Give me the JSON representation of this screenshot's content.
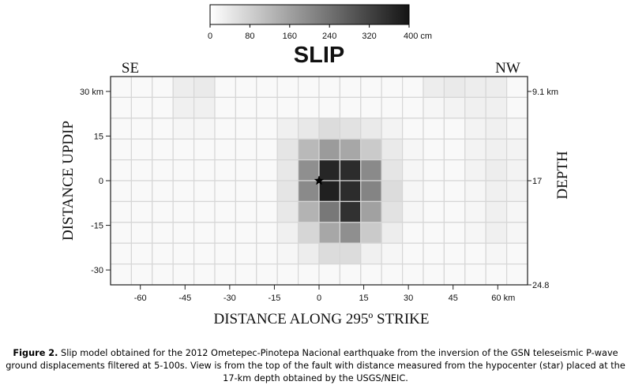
{
  "chart_data": {
    "type": "heatmap",
    "title": "SLIP",
    "colorbar": {
      "min": 0,
      "max": 400,
      "unit": "cm",
      "tick_labels": [
        "0",
        "80",
        "160",
        "240",
        "320",
        "400 cm"
      ],
      "tick_values": [
        0,
        80,
        160,
        240,
        320,
        400
      ]
    },
    "xlabel": "DISTANCE ALONG 295º STRIKE",
    "ylabel": "DISTANCE UPDIP",
    "right_label": "DEPTH",
    "corner_left": "SE",
    "corner_right": "NW",
    "x_ticks": [
      {
        "value": -60,
        "label": "-60"
      },
      {
        "value": -45,
        "label": "-45"
      },
      {
        "value": -30,
        "label": "-30"
      },
      {
        "value": -15,
        "label": "-15"
      },
      {
        "value": 0,
        "label": "0"
      },
      {
        "value": 15,
        "label": "15"
      },
      {
        "value": 30,
        "label": "30"
      },
      {
        "value": 45,
        "label": "45"
      },
      {
        "value": 60,
        "label": "60 km"
      }
    ],
    "y_ticks": [
      {
        "value": 30,
        "label": "30 km"
      },
      {
        "value": 15,
        "label": "15"
      },
      {
        "value": 0,
        "label": "0"
      },
      {
        "value": -15,
        "label": "-15"
      },
      {
        "value": -30,
        "label": "-30"
      }
    ],
    "depth_ticks": [
      {
        "value": 30,
        "label": "9.1 km"
      },
      {
        "value": 0,
        "label": "17"
      },
      {
        "value": -35,
        "label": "24.8"
      }
    ],
    "xlim": [
      -70,
      70
    ],
    "ylim": [
      -35,
      35
    ],
    "subfault_size_km": [
      7,
      7
    ],
    "grid_x_start": -70,
    "grid_y_top": 35,
    "hypocenter": {
      "x": 0,
      "y": 0
    },
    "slip_cm": [
      [
        10,
        10,
        10,
        30,
        35,
        10,
        10,
        10,
        10,
        10,
        10,
        10,
        10,
        10,
        10,
        30,
        35,
        30,
        30,
        10
      ],
      [
        10,
        10,
        10,
        25,
        25,
        10,
        10,
        10,
        10,
        10,
        10,
        10,
        10,
        10,
        10,
        15,
        20,
        25,
        25,
        10
      ],
      [
        10,
        10,
        10,
        15,
        15,
        10,
        10,
        10,
        25,
        40,
        60,
        50,
        35,
        20,
        10,
        10,
        10,
        20,
        25,
        15
      ],
      [
        10,
        10,
        10,
        10,
        10,
        10,
        10,
        10,
        45,
        120,
        170,
        150,
        90,
        35,
        15,
        10,
        10,
        20,
        25,
        20
      ],
      [
        10,
        10,
        10,
        10,
        10,
        10,
        10,
        10,
        40,
        190,
        370,
        360,
        200,
        45,
        15,
        10,
        10,
        20,
        30,
        20
      ],
      [
        10,
        10,
        10,
        10,
        10,
        10,
        10,
        10,
        45,
        200,
        380,
        360,
        210,
        60,
        15,
        10,
        10,
        15,
        25,
        20
      ],
      [
        10,
        10,
        10,
        10,
        10,
        10,
        10,
        10,
        40,
        130,
        230,
        350,
        160,
        50,
        15,
        10,
        10,
        15,
        25,
        15
      ],
      [
        10,
        10,
        10,
        10,
        10,
        10,
        10,
        10,
        25,
        70,
        150,
        190,
        90,
        30,
        10,
        10,
        10,
        15,
        25,
        15
      ],
      [
        10,
        10,
        10,
        10,
        10,
        10,
        10,
        10,
        15,
        30,
        60,
        60,
        25,
        15,
        10,
        10,
        10,
        10,
        15,
        10
      ],
      [
        10,
        10,
        10,
        10,
        10,
        10,
        10,
        10,
        10,
        10,
        10,
        10,
        10,
        10,
        10,
        10,
        10,
        10,
        10,
        10
      ]
    ]
  },
  "caption": {
    "label": "Figure 2.",
    "text": " Slip model obtained for the 2012 Ometepec-Pinotepa Nacional earthquake from the inversion of the GSN teleseismic P-wave ground displacements filtered at 5-100s. View is from the top of the fault with distance measured from the hypocenter (star) placed at the 17-km depth obtained by the USGS/NEIC."
  }
}
